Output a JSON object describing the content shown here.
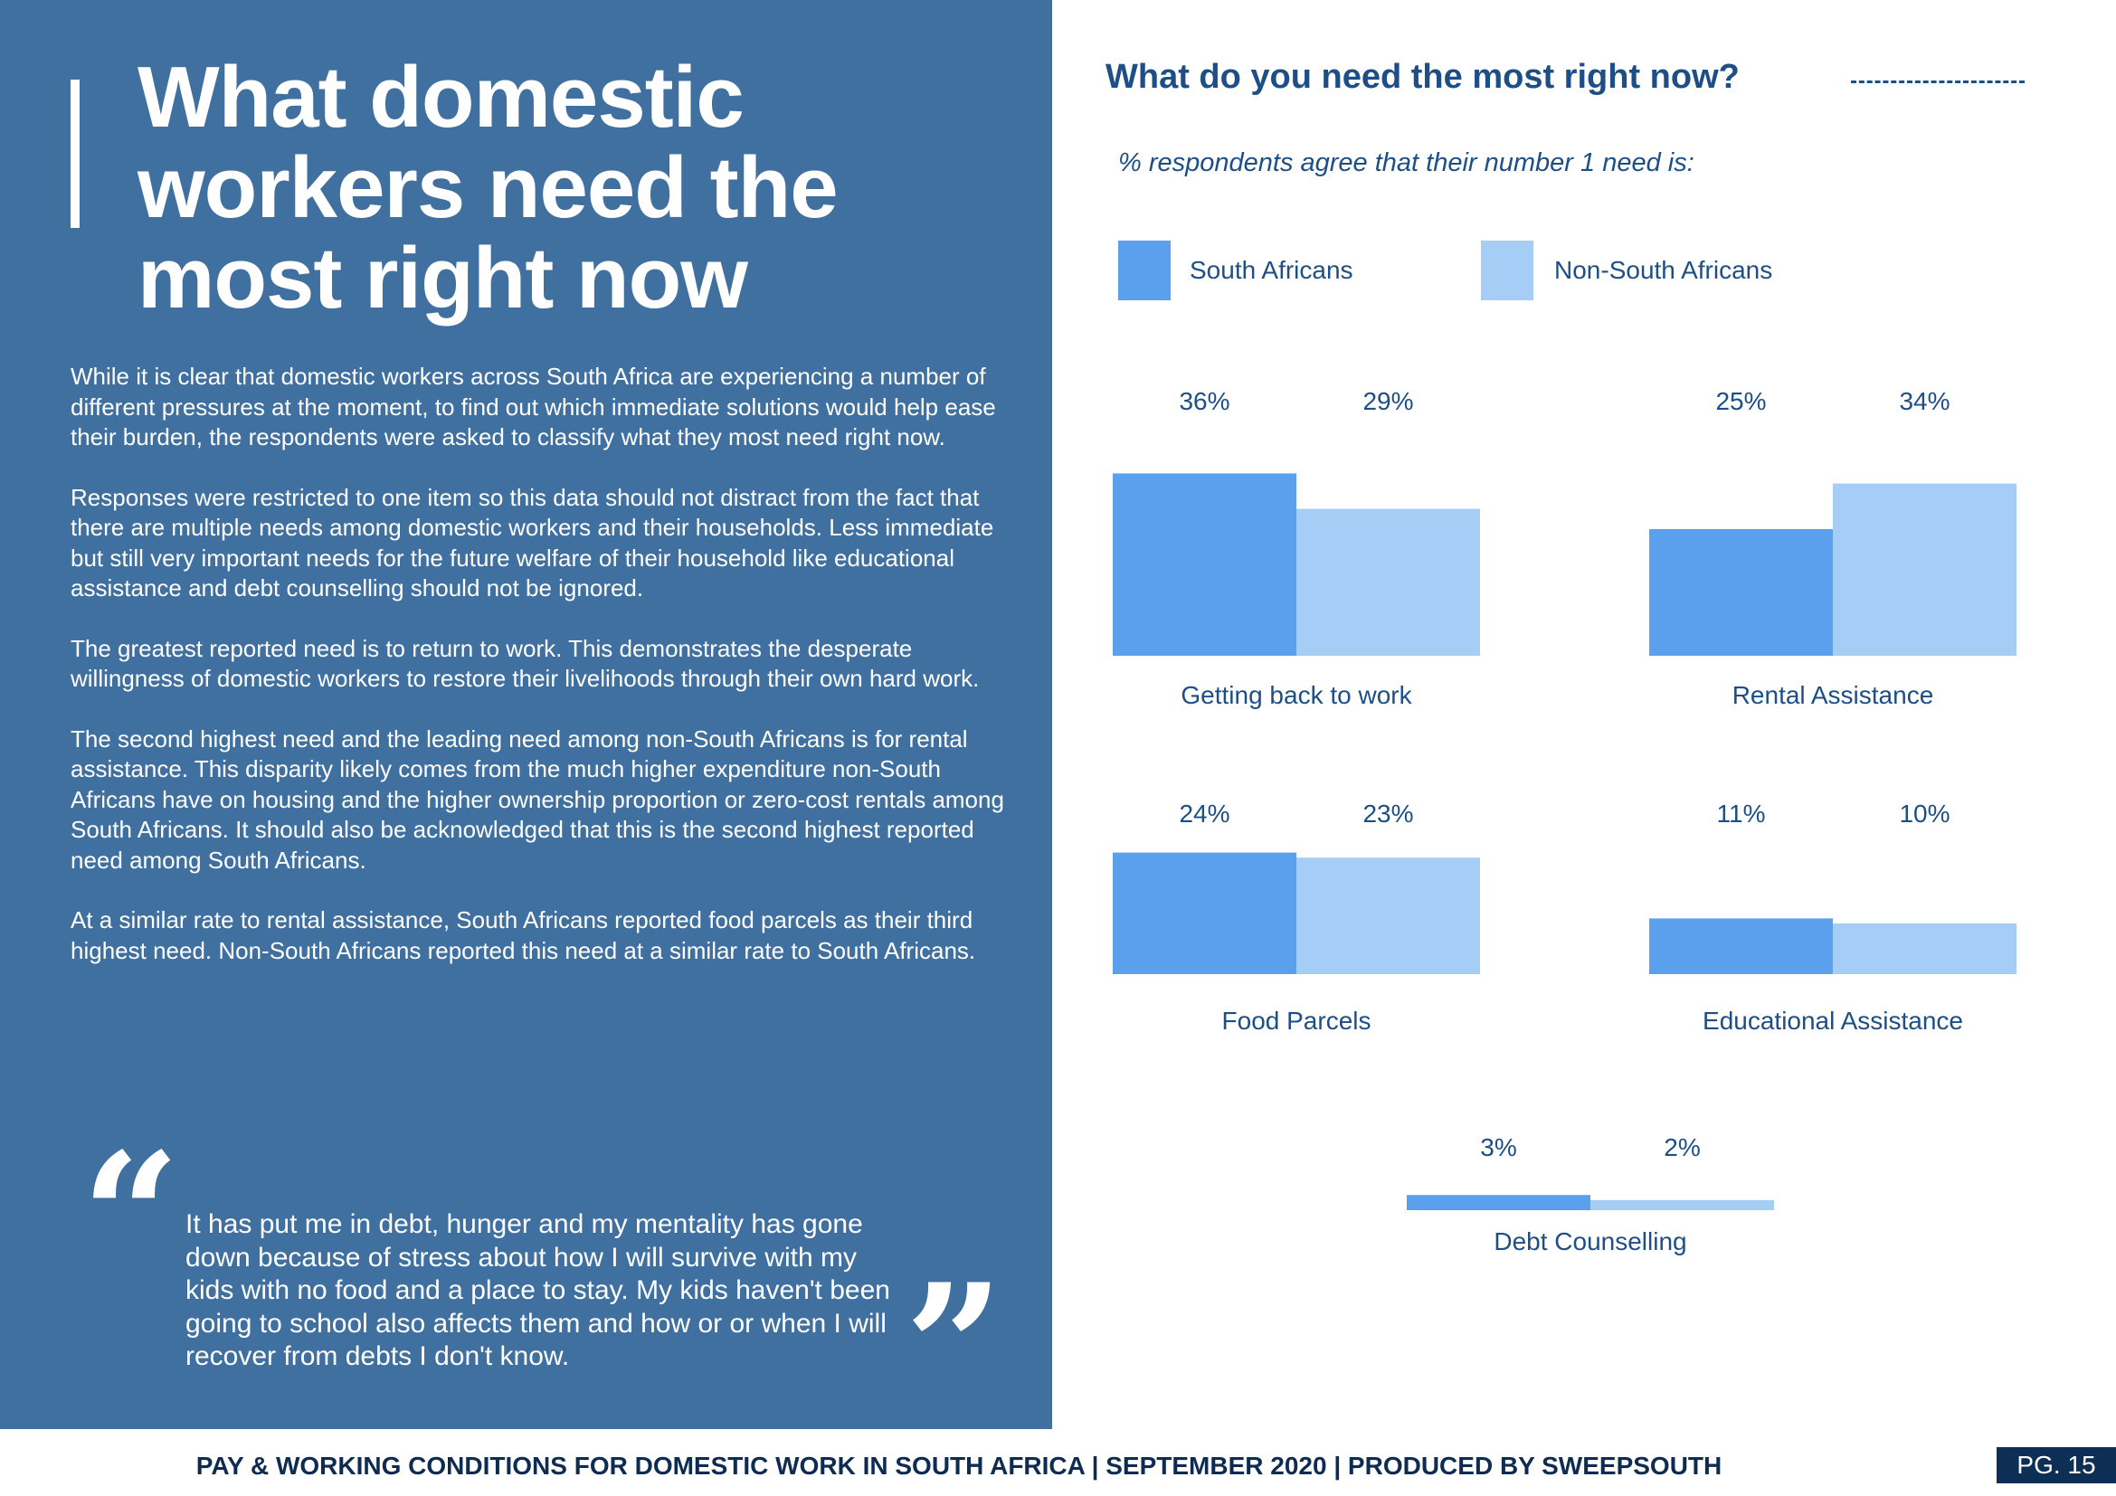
{
  "headline": "What domestic workers need the most right now",
  "paragraphs": [
    "While it is clear that domestic workers across South Africa are experiencing a number of different pressures at the moment, to find out which immediate solutions would help ease their burden, the respondents were asked to classify what they most need right now.",
    "Responses were restricted to one item so this data should not distract from the fact that there are multiple needs among domestic workers and their households. Less immediate but still very important needs for the future welfare of their household like educational assistance and debt counselling should not be ignored.",
    "The greatest reported need is to return to work. This demonstrates the desperate willingness of domestic workers to restore their livelihoods through their own hard work.",
    "The second highest need and the leading need among non-South Africans is for rental assistance. This disparity likely comes from the much higher expenditure non-South Africans have on housing and the higher ownership proportion or zero-cost rentals among South Africans. It should also be acknowledged that this is the second highest reported need among South Africans.",
    "At a similar rate to rental assistance, South Africans reported food parcels as their third highest need. Non-South Africans reported this need at a similar rate to South Africans."
  ],
  "quote": {
    "open_mark": "“",
    "close_mark": "”",
    "text": "It has put me in debt, hunger and my mentality has gone down because of stress about how I will survive with my kids with no food and a place to stay. My kids haven't been going to school also affects them and how or or when I will recover from debts I don't know."
  },
  "footer": {
    "text": "PAY & WORKING CONDITIONS FOR DOMESTIC WORK IN SOUTH AFRICA  |  SEPTEMBER 2020 | PRODUCED BY SWEEPSOUTH",
    "page": "PG. 15"
  },
  "colors": {
    "panel": "#3f70a0",
    "south_africans": "#5ba0ec",
    "non_south_africans": "#a6cdf5",
    "text_dark": "#1d4f86",
    "footer_text": "#0e2c52",
    "badge": "#0d2e55"
  },
  "chart_data": {
    "type": "bar",
    "title": "What do you need the most right now?",
    "subtitle": "% respondents agree that their number 1 need is:",
    "unit": "%",
    "legend_position": "top",
    "series": [
      {
        "name": "South Africans",
        "color": "#5ba0ec"
      },
      {
        "name": "Non-South Africans",
        "color": "#a6cdf5"
      }
    ],
    "groups": [
      {
        "category": "Getting back to work",
        "values": [
          36,
          29
        ]
      },
      {
        "category": "Rental Assistance",
        "values": [
          25,
          34
        ]
      },
      {
        "category": "Food Parcels",
        "values": [
          24,
          23
        ]
      },
      {
        "category": "Educational Assistance",
        "values": [
          11,
          10
        ]
      },
      {
        "category": "Debt Counselling",
        "values": [
          3,
          2
        ]
      }
    ]
  }
}
